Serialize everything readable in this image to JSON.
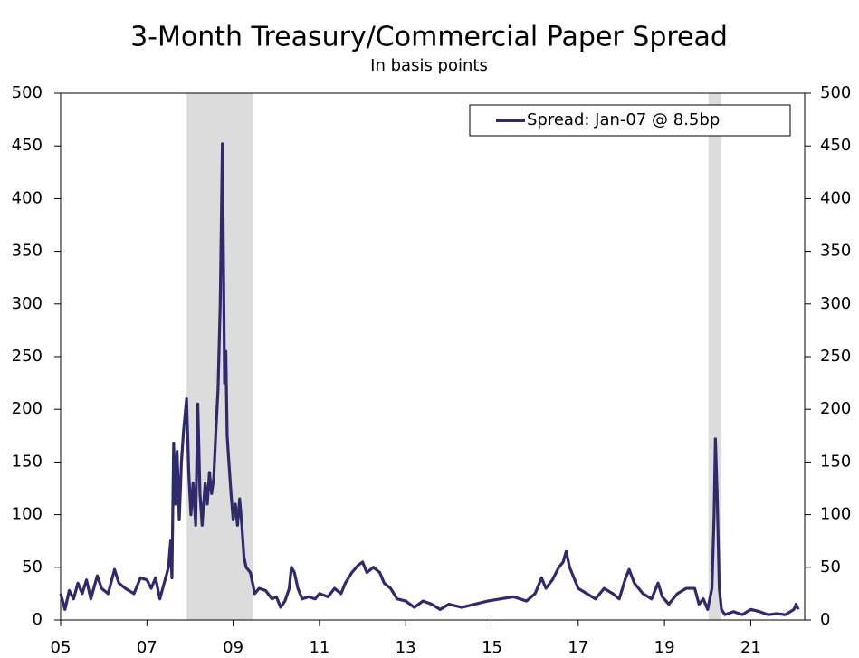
{
  "chart_data": {
    "type": "line",
    "title": "3-Month Treasury/Commercial Paper Spread",
    "subtitle": "In basis points",
    "legend": "upper right",
    "recessions": [
      [
        2007.92,
        2009.46
      ],
      [
        2020.02,
        2020.31
      ]
    ],
    "recession_color": "#dcdcdc",
    "xlim": [
      2005,
      2022.25
    ],
    "xticks": [
      {
        "value": 2005,
        "label": "05"
      },
      {
        "value": 2007,
        "label": "07"
      },
      {
        "value": 2009,
        "label": "09"
      },
      {
        "value": 2011,
        "label": "11"
      },
      {
        "value": 2013,
        "label": "13"
      },
      {
        "value": 2015,
        "label": "15"
      },
      {
        "value": 2017,
        "label": "17"
      },
      {
        "value": 2019,
        "label": "19"
      },
      {
        "value": 2021,
        "label": "21"
      }
    ],
    "ylim": [
      0,
      500
    ],
    "yticks": [
      0,
      50,
      100,
      150,
      200,
      250,
      300,
      350,
      400,
      450,
      500
    ],
    "y2lim": [
      0,
      500
    ],
    "y2ticks": [
      0,
      50,
      100,
      150,
      200,
      250,
      300,
      350,
      400,
      450,
      500
    ],
    "x": [
      2005.0,
      2005.1,
      2005.2,
      2005.3,
      2005.4,
      2005.5,
      2005.6,
      2005.7,
      2005.85,
      2005.95,
      2006.1,
      2006.25,
      2006.35,
      2006.5,
      2006.7,
      2006.85,
      2007.0,
      2007.1,
      2007.2,
      2007.3,
      2007.4,
      2007.5,
      2007.55,
      2007.58,
      2007.62,
      2007.66,
      2007.7,
      2007.75,
      2007.8,
      2007.85,
      2007.92,
      2007.97,
      2008.02,
      2008.07,
      2008.13,
      2008.18,
      2008.23,
      2008.28,
      2008.35,
      2008.4,
      2008.45,
      2008.5,
      2008.55,
      2008.6,
      2008.65,
      2008.7,
      2008.75,
      2008.78,
      2008.8,
      2008.83,
      2008.86,
      2008.9,
      2008.95,
      2009.0,
      2009.05,
      2009.1,
      2009.15,
      2009.2,
      2009.25,
      2009.3,
      2009.4,
      2009.5,
      2009.6,
      2009.75,
      2009.9,
      2010.0,
      2010.1,
      2010.2,
      2010.3,
      2010.35,
      2010.42,
      2010.5,
      2010.6,
      2010.75,
      2010.9,
      2011.0,
      2011.2,
      2011.35,
      2011.5,
      2011.6,
      2011.75,
      2011.9,
      2012.0,
      2012.1,
      2012.25,
      2012.4,
      2012.5,
      2012.65,
      2012.8,
      2013.0,
      2013.2,
      2013.4,
      2013.6,
      2013.8,
      2014.0,
      2014.3,
      2014.6,
      2014.9,
      2015.2,
      2015.5,
      2015.8,
      2016.0,
      2016.1,
      2016.15,
      2016.25,
      2016.4,
      2016.55,
      2016.65,
      2016.72,
      2016.8,
      2016.9,
      2017.0,
      2017.2,
      2017.4,
      2017.6,
      2017.8,
      2017.95,
      2018.1,
      2018.18,
      2018.3,
      2018.5,
      2018.7,
      2018.85,
      2018.95,
      2019.1,
      2019.3,
      2019.5,
      2019.7,
      2019.8,
      2019.9,
      2020.0,
      2020.05,
      2020.1,
      2020.15,
      2020.18,
      2020.22,
      2020.27,
      2020.32,
      2020.4,
      2020.6,
      2020.8,
      2021.0,
      2021.2,
      2021.4,
      2021.6,
      2021.8,
      2022.0,
      2022.05,
      2022.1
    ],
    "series": [
      {
        "name": "Spread: Jan-07 @ 8.5bp",
        "color": "#2e2a6b",
        "values": [
          25,
          10,
          28,
          20,
          35,
          25,
          38,
          20,
          42,
          30,
          25,
          48,
          35,
          30,
          25,
          40,
          38,
          30,
          40,
          20,
          35,
          50,
          75,
          40,
          168,
          110,
          160,
          95,
          150,
          180,
          210,
          140,
          100,
          130,
          90,
          205,
          120,
          90,
          130,
          110,
          140,
          120,
          135,
          180,
          220,
          300,
          452,
          320,
          225,
          255,
          175,
          150,
          120,
          95,
          110,
          90,
          115,
          90,
          60,
          50,
          45,
          25,
          30,
          28,
          20,
          22,
          12,
          18,
          30,
          50,
          45,
          30,
          20,
          22,
          20,
          25,
          22,
          30,
          25,
          35,
          45,
          52,
          55,
          45,
          50,
          45,
          35,
          30,
          20,
          18,
          12,
          18,
          15,
          10,
          15,
          12,
          15,
          18,
          20,
          22,
          18,
          25,
          35,
          40,
          30,
          38,
          50,
          55,
          65,
          50,
          40,
          30,
          25,
          20,
          30,
          25,
          20,
          40,
          48,
          35,
          25,
          20,
          35,
          22,
          15,
          25,
          30,
          30,
          15,
          20,
          10,
          20,
          30,
          100,
          172,
          120,
          30,
          10,
          5,
          8,
          5,
          10,
          8,
          5,
          6,
          5,
          10,
          15,
          10
        ]
      }
    ]
  }
}
